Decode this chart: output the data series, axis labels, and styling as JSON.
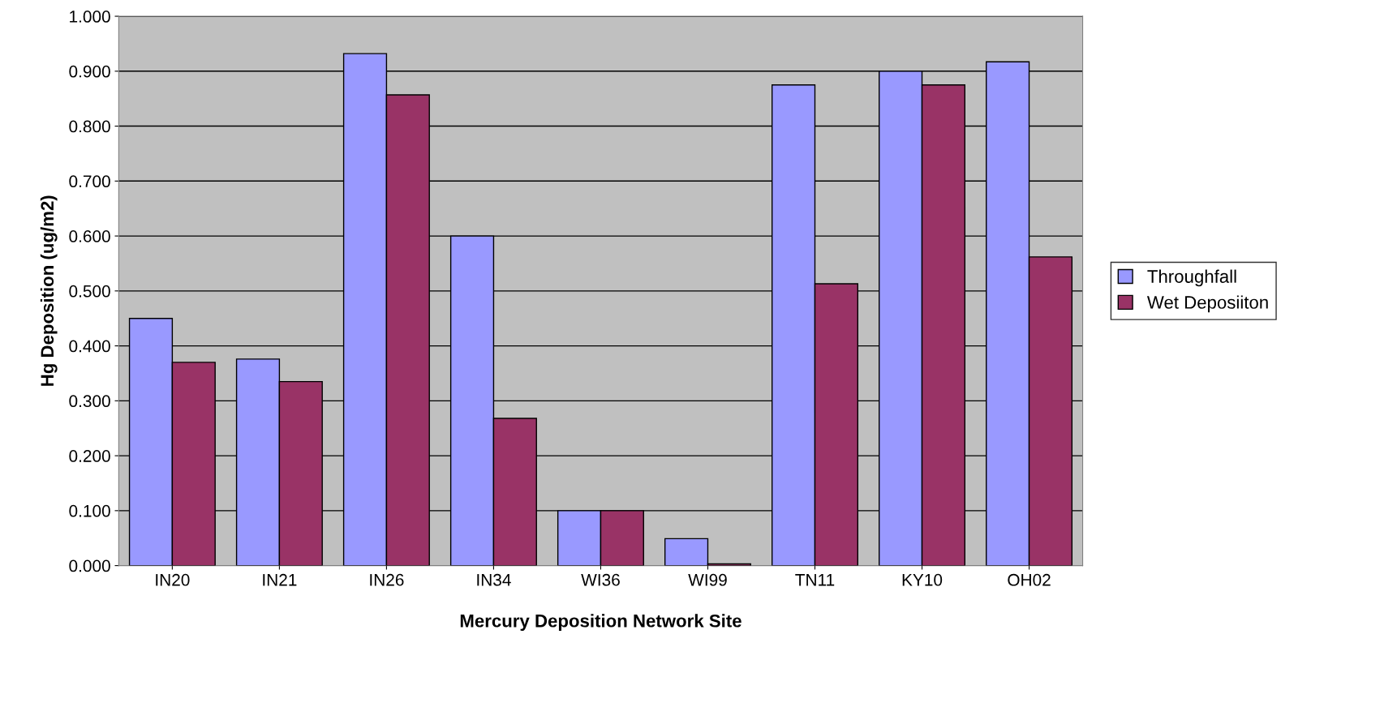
{
  "chart_data": {
    "type": "bar",
    "xlabel": "Mercury Deposition Network Site",
    "ylabel": "Hg Deposition (ug/m2)",
    "categories": [
      "IN20",
      "IN21",
      "IN26",
      "IN34",
      "WI36",
      "WI99",
      "TN11",
      "KY10",
      "OH02"
    ],
    "series": [
      {
        "name": "Throughfall",
        "color": "#9999ff",
        "values": [
          0.45,
          0.376,
          0.932,
          0.6,
          0.1,
          0.049,
          0.875,
          0.9,
          0.917
        ]
      },
      {
        "name": "Wet Deposiiton",
        "color": "#993366",
        "values": [
          0.37,
          0.335,
          0.857,
          0.268,
          0.1,
          0.003,
          0.513,
          0.875,
          0.562
        ]
      }
    ],
    "ylim": [
      0,
      1
    ],
    "yticks": [
      {
        "value": 0,
        "label": "0.000"
      },
      {
        "value": 0.1,
        "label": "0.100"
      },
      {
        "value": 0.2,
        "label": "0.200"
      },
      {
        "value": 0.3,
        "label": "0.300"
      },
      {
        "value": 0.4,
        "label": "0.400"
      },
      {
        "value": 0.5,
        "label": "0.500"
      },
      {
        "value": 0.6,
        "label": "0.600"
      },
      {
        "value": 0.7,
        "label": "0.700"
      },
      {
        "value": 0.8,
        "label": "0.800"
      },
      {
        "value": 0.9,
        "label": "0.900"
      },
      {
        "value": 1.0,
        "label": "1.000"
      }
    ],
    "grid": "y",
    "legend": "right"
  }
}
